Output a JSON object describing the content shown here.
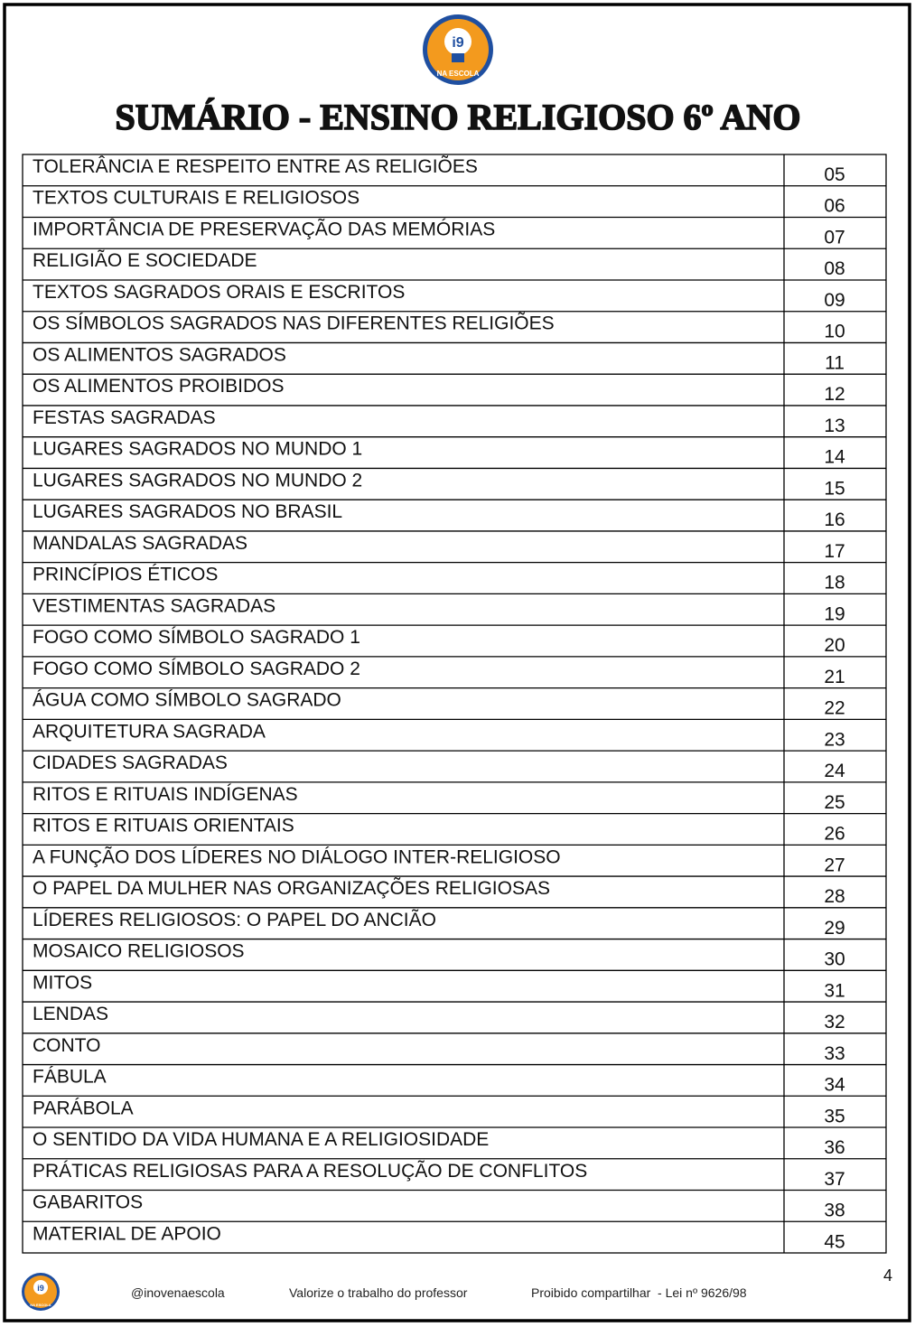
{
  "logo": {
    "mark": "i9",
    "caption": "NA ESCOLA"
  },
  "header": {
    "title": "SUMÁRIO - ENSINO RELIGIOSO 6º ANO"
  },
  "table": {
    "rows": [
      [
        "TOLERÂNCIA E RESPEITO ENTRE AS RELIGIÕES",
        "05"
      ],
      [
        "TEXTOS CULTURAIS E RELIGIOSOS",
        "06"
      ],
      [
        "IMPORTÂNCIA DE PRESERVAÇÃO DAS MEMÓRIAS",
        "07"
      ],
      [
        "RELIGIÃO E SOCIEDADE",
        "08"
      ],
      [
        "TEXTOS SAGRADOS ORAIS E ESCRITOS",
        "09"
      ],
      [
        "OS SÍMBOLOS SAGRADOS NAS DIFERENTES RELIGIÕES",
        "10"
      ],
      [
        "OS ALIMENTOS SAGRADOS",
        "11"
      ],
      [
        "OS ALIMENTOS PROIBIDOS",
        "12"
      ],
      [
        "FESTAS SAGRADAS",
        "13"
      ],
      [
        "LUGARES SAGRADOS NO MUNDO 1",
        "14"
      ],
      [
        "LUGARES SAGRADOS NO MUNDO 2",
        "15"
      ],
      [
        "LUGARES SAGRADOS NO BRASIL",
        "16"
      ],
      [
        "MANDALAS SAGRADAS",
        "17"
      ],
      [
        "PRINCÍPIOS ÉTICOS",
        "18"
      ],
      [
        "VESTIMENTAS SAGRADAS",
        "19"
      ],
      [
        "FOGO COMO SÍMBOLO SAGRADO 1",
        "20"
      ],
      [
        "FOGO COMO SÍMBOLO SAGRADO 2",
        "21"
      ],
      [
        "ÁGUA COMO SÍMBOLO SAGRADO",
        "22"
      ],
      [
        "ARQUITETURA SAGRADA",
        "23"
      ],
      [
        "CIDADES SAGRADAS",
        "24"
      ],
      [
        "RITOS E RITUAIS INDÍGENAS",
        "25"
      ],
      [
        "RITOS E RITUAIS ORIENTAIS",
        "26"
      ],
      [
        "A FUNÇÃO DOS LÍDERES NO DIÁLOGO INTER-RELIGIOSO",
        "27"
      ],
      [
        "O PAPEL DA MULHER NAS ORGANIZAÇÕES RELIGIOSAS",
        "28"
      ],
      [
        "LÍDERES RELIGIOSOS: O PAPEL DO ANCIÃO",
        "29"
      ],
      [
        "MOSAICO RELIGIOSOS",
        "30"
      ],
      [
        "MITOS",
        "31"
      ],
      [
        "LENDAS",
        "32"
      ],
      [
        "CONTO",
        "33"
      ],
      [
        "FÁBULA",
        "34"
      ],
      [
        "PARÁBOLA",
        "35"
      ],
      [
        "O SENTIDO DA VIDA HUMANA E A RELIGIOSIDADE",
        "36"
      ],
      [
        "PRÁTICAS RELIGIOSAS PARA A RESOLUÇÃO DE CONFLITOS",
        "37"
      ],
      [
        "GABARITOS",
        "38"
      ],
      [
        "MATERIAL DE APOIO",
        "45"
      ]
    ]
  },
  "page_number": "4",
  "footer": {
    "handle": "@inovenaescola",
    "note": "Valorize o trabalho do professor",
    "notice": "Proibido compartilhar  - Lei nº 9626/98"
  }
}
